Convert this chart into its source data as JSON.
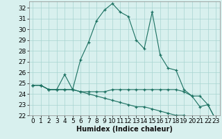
{
  "xlabel": "Humidex (Indice chaleur)",
  "x": [
    0,
    1,
    2,
    3,
    4,
    5,
    6,
    7,
    8,
    9,
    10,
    11,
    12,
    13,
    14,
    15,
    16,
    17,
    18,
    19,
    20,
    21,
    22,
    23
  ],
  "line1": [
    24.8,
    24.8,
    24.4,
    24.4,
    25.8,
    24.4,
    27.2,
    28.8,
    30.8,
    31.8,
    32.4,
    31.6,
    31.2,
    29.0,
    28.2,
    31.6,
    27.6,
    26.4,
    26.2,
    24.4,
    23.8,
    22.8,
    23.0,
    21.6
  ],
  "line2": [
    24.8,
    24.8,
    24.4,
    24.4,
    24.4,
    24.4,
    24.2,
    24.2,
    24.2,
    24.2,
    24.4,
    24.4,
    24.4,
    24.4,
    24.4,
    24.4,
    24.4,
    24.4,
    24.4,
    24.2,
    23.8,
    23.8,
    23.0,
    21.6
  ],
  "line3": [
    24.8,
    24.8,
    24.4,
    24.4,
    24.4,
    24.4,
    24.2,
    24.0,
    23.8,
    23.6,
    23.4,
    23.2,
    23.0,
    22.8,
    22.8,
    22.6,
    22.4,
    22.2,
    22.0,
    22.0,
    21.8,
    21.6,
    21.4,
    21.6
  ],
  "line_color": "#1a7060",
  "bg_color": "#d8f0ee",
  "grid_color": "#a8d4d0",
  "ylim": [
    22,
    32.6
  ],
  "yticks": [
    22,
    23,
    24,
    25,
    26,
    27,
    28,
    29,
    30,
    31,
    32
  ],
  "label_fontsize": 7,
  "tick_fontsize": 6.5
}
